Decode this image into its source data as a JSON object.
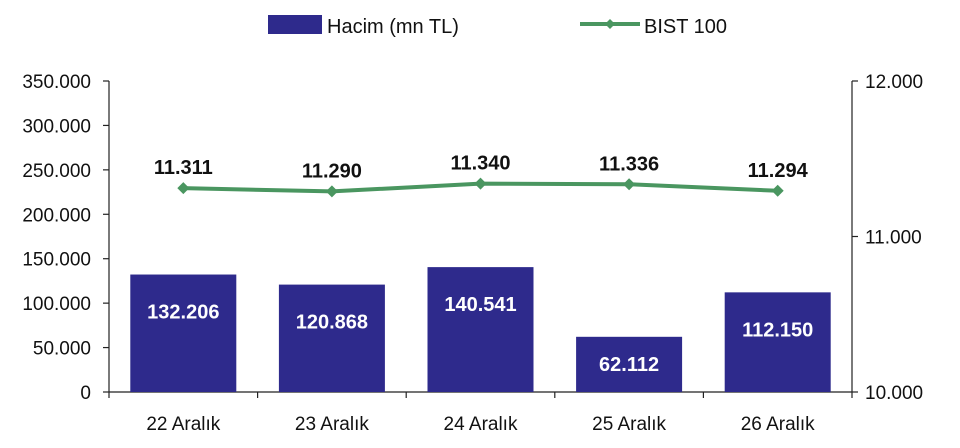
{
  "chart_data": {
    "type": "bar",
    "categories": [
      "22 Aralık",
      "23 Aralık",
      "24 Aralık",
      "25 Aralık",
      "26 Aralık"
    ],
    "series": [
      {
        "name": "Hacim (mn TL)",
        "type": "bar",
        "axis": "left",
        "color": "#2e2a8c",
        "values": [
          132206,
          120868,
          140541,
          62112,
          112150
        ],
        "labels": [
          "132.206",
          "120.868",
          "140.541",
          "62.112",
          "112.150"
        ]
      },
      {
        "name": "BIST 100",
        "type": "line",
        "axis": "right",
        "color": "#4a9660",
        "values": [
          11311,
          11290,
          11340,
          11336,
          11294
        ],
        "labels": [
          "11.311",
          "11.290",
          "11.340",
          "11.336",
          "11.294"
        ]
      }
    ],
    "left_axis": {
      "ylim": [
        0,
        350000
      ],
      "ticks": [
        0,
        50000,
        100000,
        150000,
        200000,
        250000,
        300000,
        350000
      ],
      "tick_labels": [
        "0",
        "50.000",
        "100.000",
        "150.000",
        "200.000",
        "250.000",
        "300.000",
        "350.000"
      ]
    },
    "right_axis": {
      "ylim": [
        10000,
        12000
      ],
      "ticks": [
        10000,
        11000,
        12000
      ],
      "tick_labels": [
        "10.000",
        "11.000",
        "12.000"
      ]
    },
    "grid": false,
    "legend_position": "top"
  }
}
